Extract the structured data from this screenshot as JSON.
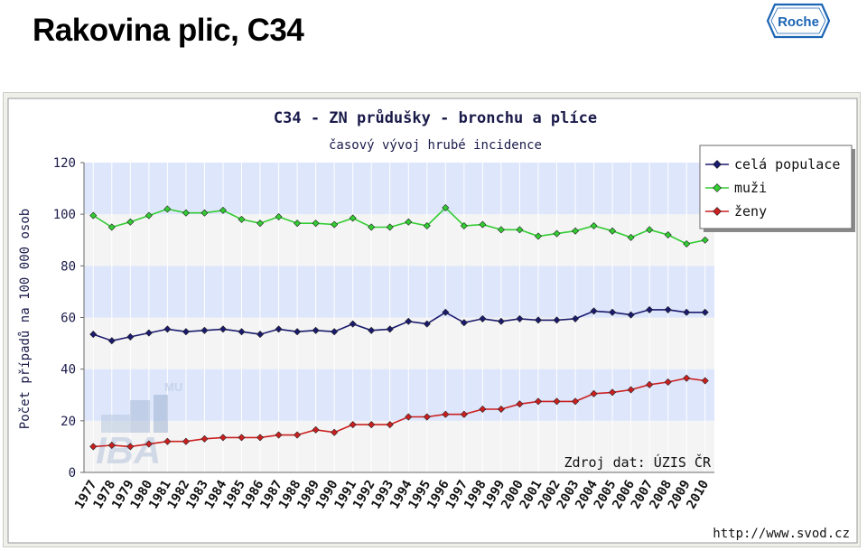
{
  "slide": {
    "title": "Rakovina plic, C34"
  },
  "logo": {
    "text": "Roche",
    "color": "#1a64b4"
  },
  "watermark": {
    "text": "IBA",
    "superscript": "MU"
  },
  "chart_data": {
    "type": "line",
    "title": "C34 - ZN průdušky - bronchu a plíce",
    "subtitle": "časový vývoj hrubé incidence",
    "ylabel": "Počet případů na 100 000 osob",
    "xlabel": "",
    "ylim": [
      0,
      120
    ],
    "yticks": [
      0,
      20,
      40,
      60,
      80,
      100,
      120
    ],
    "grid": true,
    "legend_position": "top-right",
    "categories": [
      "1977",
      "1978",
      "1979",
      "1980",
      "1981",
      "1982",
      "1983",
      "1984",
      "1985",
      "1986",
      "1987",
      "1988",
      "1989",
      "1990",
      "1991",
      "1992",
      "1993",
      "1994",
      "1995",
      "1996",
      "1997",
      "1998",
      "1999",
      "2000",
      "2001",
      "2002",
      "2003",
      "2004",
      "2005",
      "2006",
      "2007",
      "2008",
      "2009",
      "2010"
    ],
    "series": [
      {
        "name": "celá populace",
        "color": "#1a1a6e",
        "values": [
          53.5,
          51,
          52.5,
          54,
          55.5,
          54.5,
          55,
          55.5,
          54.5,
          53.5,
          55.5,
          54.5,
          55,
          54.5,
          57.5,
          55,
          55.5,
          58.5,
          57.5,
          62,
          58,
          59.5,
          58.5,
          59.5,
          59,
          59,
          59.5,
          62.5,
          62,
          61,
          63,
          63,
          62,
          62
        ]
      },
      {
        "name": "muži",
        "color": "#33cc33",
        "values": [
          99.5,
          95,
          97,
          99.5,
          102,
          100.5,
          100.5,
          101.5,
          98,
          96.5,
          99,
          96.5,
          96.5,
          96,
          98.5,
          95,
          95,
          97,
          95.5,
          102.5,
          95.5,
          96,
          94,
          94,
          91.5,
          92.5,
          93.5,
          95.5,
          93.5,
          91,
          94,
          92,
          88.5,
          90
        ]
      },
      {
        "name": "ženy",
        "color": "#cc1f1f",
        "values": [
          10,
          10.5,
          10,
          11,
          12,
          12,
          13,
          13.5,
          13.5,
          13.5,
          14.5,
          14.5,
          16.5,
          15.5,
          18.5,
          18.5,
          18.5,
          21.5,
          21.5,
          22.5,
          22.5,
          24.5,
          24.5,
          26.5,
          27.5,
          27.5,
          27.5,
          30.5,
          31,
          32,
          34,
          35,
          36.5,
          35.5
        ]
      }
    ],
    "source_note": "Zdroj dat: ÚZIS ČR",
    "url_note": "http://www.svod.cz"
  }
}
